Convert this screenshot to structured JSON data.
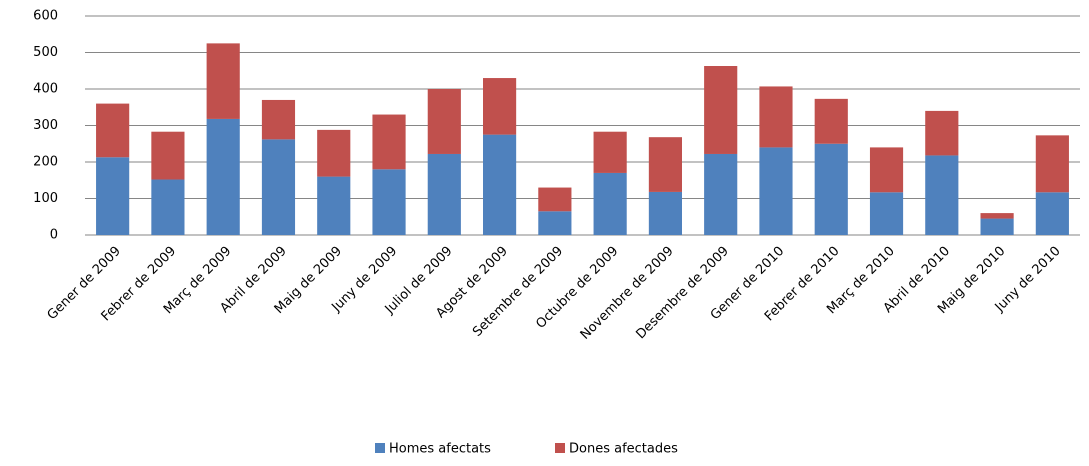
{
  "chart_data": {
    "type": "stacked_bar",
    "categories": [
      "Gener de 2009",
      "Febrer de 2009",
      "Març de 2009",
      "Abril de 2009",
      "Maig de 2009",
      "Juny de 2009",
      "Juliol de 2009",
      "Agost de 2009",
      "Setembre de 2009",
      "Octubre de 2009",
      "Novembre de 2009",
      "Desembre de 2009",
      "Gener de 2010",
      "Febrer de 2010",
      "Març de 2010",
      "Abril de 2010",
      "Maig de 2010",
      "Juny de 2010"
    ],
    "series": [
      {
        "name": "Homes afectats",
        "color": "#4f81bd",
        "values": [
          213,
          152,
          318,
          262,
          160,
          180,
          222,
          275,
          65,
          170,
          118,
          222,
          240,
          250,
          117,
          218,
          45,
          117
        ]
      },
      {
        "name": "Dones afectades",
        "color": "#c0504d",
        "values": [
          147,
          131,
          207,
          108,
          128,
          150,
          178,
          155,
          65,
          113,
          150,
          241,
          167,
          123,
          123,
          122,
          15,
          156
        ]
      }
    ],
    "ylim": [
      0,
      600
    ],
    "yticks": [
      0,
      100,
      200,
      300,
      400,
      500,
      600
    ],
    "grid": true,
    "legend": "bottom"
  }
}
